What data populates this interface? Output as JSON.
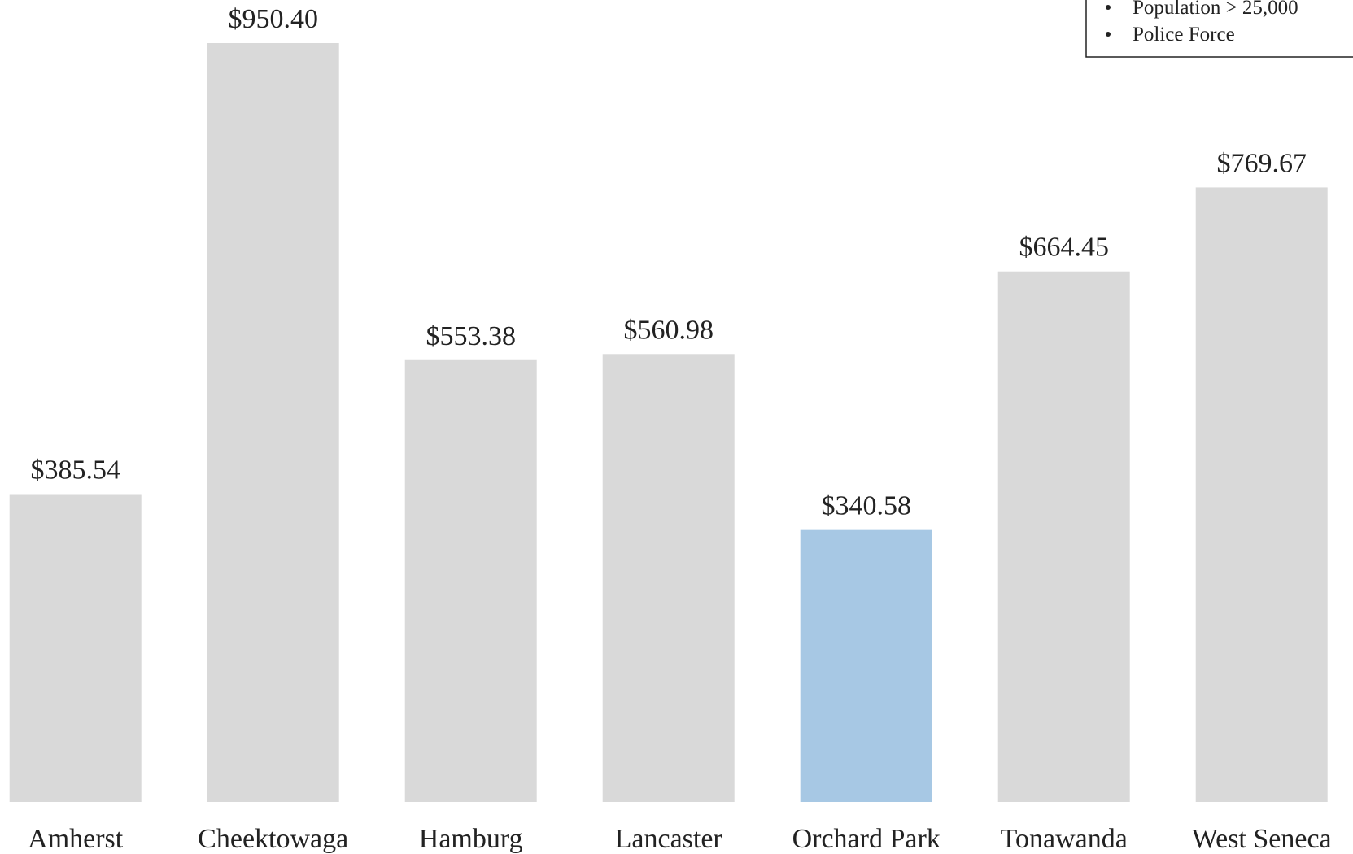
{
  "chart_data": {
    "type": "bar",
    "categories": [
      "Amherst",
      "Cheektowaga",
      "Hamburg",
      "Lancaster",
      "Orchard Park",
      "Tonawanda",
      "West Seneca"
    ],
    "values": [
      385.54,
      950.4,
      553.38,
      560.98,
      340.58,
      664.45,
      769.67
    ],
    "value_labels": [
      "$385.54",
      "$950.40",
      "$553.38",
      "$560.98",
      "$340.58",
      "$664.45",
      "$769.67"
    ],
    "colors": [
      "#d9d9d9",
      "#d9d9d9",
      "#d9d9d9",
      "#d9d9d9",
      "#a7c8e4",
      "#d9d9d9",
      "#d9d9d9"
    ],
    "legend_items": [
      "Population > 25,000",
      "Police Force"
    ]
  }
}
